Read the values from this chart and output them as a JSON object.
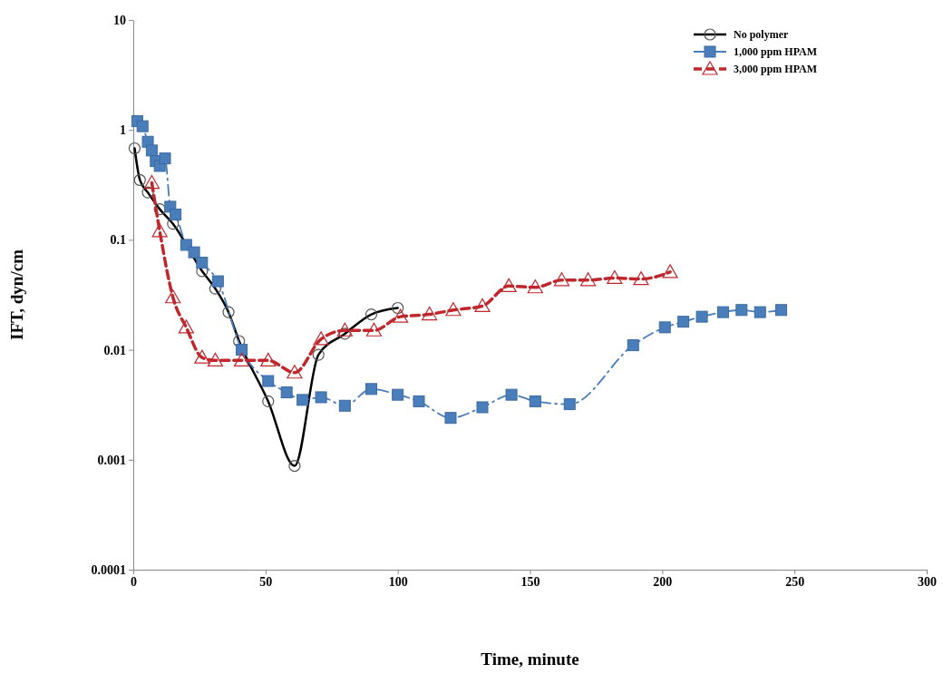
{
  "chart_data": {
    "type": "line",
    "xlabel": "Time, minute",
    "ylabel": "IFT, dyn/cm",
    "log": "y",
    "xlim": [
      0,
      300
    ],
    "xticks": [
      0,
      50,
      100,
      150,
      200,
      250,
      300
    ],
    "ylim": [
      0.0001,
      10
    ],
    "yticks": [
      0.0001,
      0.001,
      0.01,
      0.1,
      1,
      10
    ],
    "grid": false,
    "legend": "top right",
    "series": [
      {
        "name": "No polymer",
        "color": "#000000",
        "marker": "circle",
        "line_style": "solid",
        "x": [
          0.5,
          2.5,
          5.5,
          10,
          15,
          20,
          26,
          31,
          36,
          40,
          51,
          61,
          70,
          80,
          90,
          100
        ],
        "values": [
          0.68,
          0.35,
          0.27,
          0.19,
          0.14,
          null,
          0.052,
          0.036,
          0.022,
          0.012,
          0.0034,
          0.00088,
          0.009,
          0.014,
          0.021,
          0.024
        ]
      },
      {
        "name": "1,000 ppm HPAM",
        "color": "#4a7ebb",
        "marker": "square",
        "line_style": "dashdot",
        "x": [
          1.5,
          3.5,
          5.5,
          7,
          8.5,
          10,
          12,
          14,
          16,
          20,
          23,
          26,
          32,
          41,
          51,
          58,
          64,
          71,
          80,
          90,
          100,
          108,
          120,
          132,
          143,
          152,
          165,
          189,
          201,
          208,
          215,
          223,
          230,
          237,
          245
        ],
        "values": [
          1.2,
          1.08,
          0.78,
          0.65,
          0.52,
          0.47,
          0.55,
          0.2,
          0.17,
          0.09,
          0.077,
          0.062,
          0.042,
          0.01,
          0.0052,
          0.0041,
          0.0035,
          0.0037,
          0.0031,
          0.0044,
          0.0039,
          0.0034,
          0.0024,
          0.003,
          0.0039,
          0.0034,
          0.0032,
          0.011,
          0.016,
          0.018,
          0.02,
          0.022,
          0.023,
          0.022,
          0.023
        ]
      },
      {
        "name": "3,000 ppm HPAM",
        "color": "#c0272d",
        "marker": "triangle",
        "line_style": "dashed",
        "x": [
          7,
          10,
          15,
          20,
          26,
          31,
          41,
          51,
          61,
          71,
          80,
          91,
          101,
          112,
          121,
          132,
          142,
          152,
          162,
          172,
          182,
          192,
          203
        ],
        "values": [
          0.33,
          0.12,
          0.03,
          0.016,
          0.0085,
          0.008,
          0.008,
          0.008,
          0.0062,
          0.0125,
          0.015,
          0.015,
          0.02,
          0.021,
          0.023,
          0.025,
          0.038,
          0.037,
          0.043,
          0.043,
          0.045,
          0.044,
          0.051
        ]
      }
    ]
  }
}
